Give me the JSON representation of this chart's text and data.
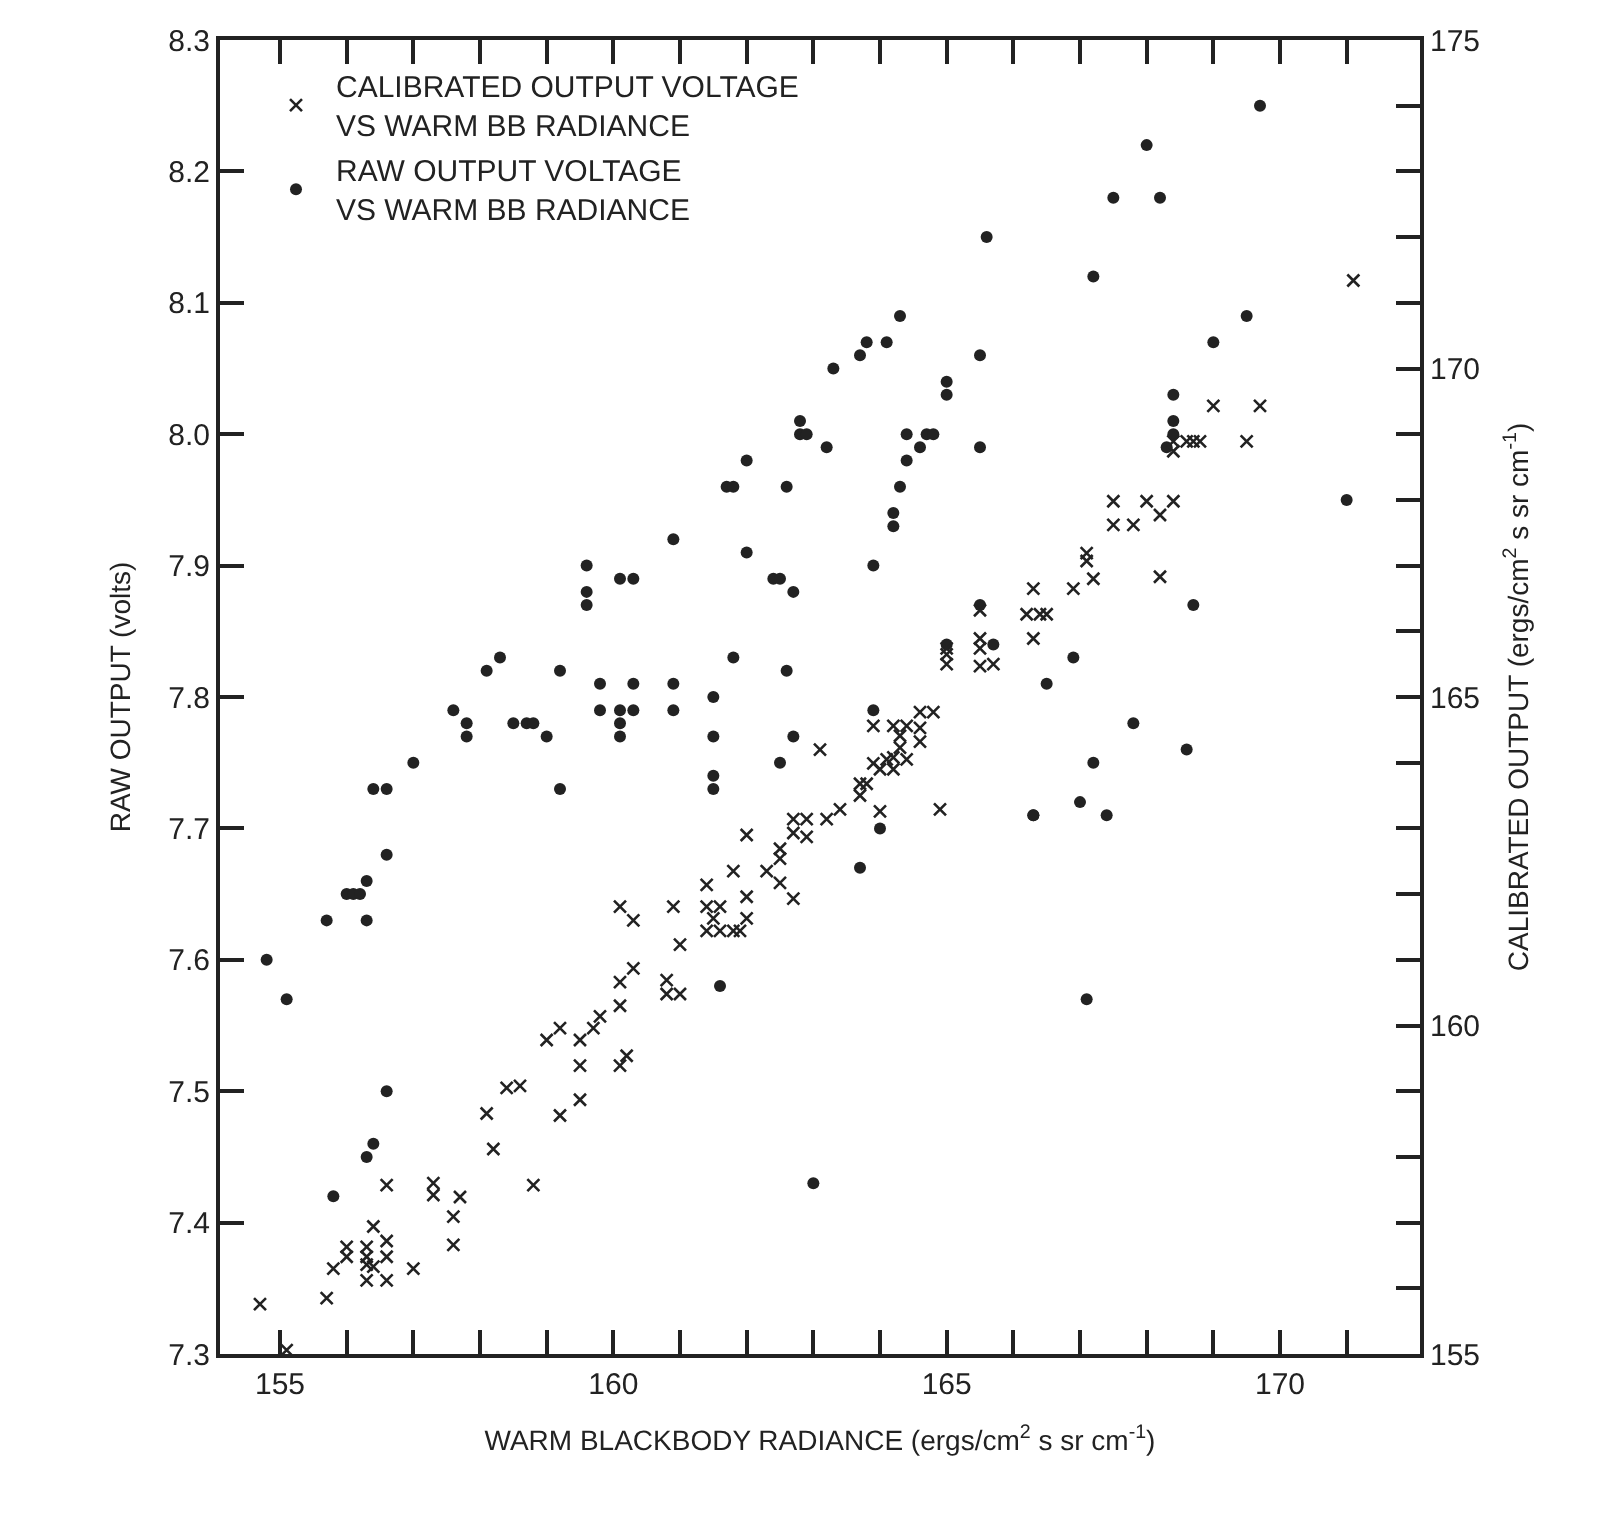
{
  "chart_data": {
    "type": "scatter",
    "xlabel": "WARM BLACKBODY RADIANCE (ergs/cm$^{2}$ s sr cm$^{-1}$)",
    "ylabel": "RAW OUTPUT (volts)",
    "y2label": "CALIBRATED OUTPUT (ergs/cm$^{2}$ s sr cm$^{-1}$)",
    "xlim": [
      154.1,
      172.1
    ],
    "xticks": [
      155,
      {
        "value": 156,
        "label": null
      },
      {
        "value": 157,
        "label": null
      },
      {
        "value": 158,
        "label": null
      },
      {
        "value": 159,
        "label": null
      },
      160,
      {
        "value": 161,
        "label": null
      },
      {
        "value": 162,
        "label": null
      },
      {
        "value": 163,
        "label": null
      },
      {
        "value": 164,
        "label": null
      },
      165,
      {
        "value": 166,
        "label": null
      },
      {
        "value": 167,
        "label": null
      },
      {
        "value": 168,
        "label": null
      },
      {
        "value": 169,
        "label": null
      },
      170,
      {
        "value": 171,
        "label": null
      }
    ],
    "ylim": [
      7.3,
      8.3
    ],
    "yticks": [
      7.3,
      7.4,
      7.5,
      7.6,
      7.7,
      7.8,
      7.9,
      {
        "value": 8.0,
        "label": "8.0"
      },
      8.1,
      8.2,
      8.3
    ],
    "y2lim": [
      155,
      175
    ],
    "y2ticks": [
      155,
      {
        "value": 156,
        "label": null
      },
      {
        "value": 157,
        "label": null
      },
      {
        "value": 158,
        "label": null
      },
      {
        "value": 159,
        "label": null
      },
      160,
      {
        "value": 161,
        "label": null
      },
      {
        "value": 162,
        "label": null
      },
      {
        "value": 163,
        "label": null
      },
      {
        "value": 164,
        "label": null
      },
      165,
      {
        "value": 166,
        "label": null
      },
      {
        "value": 167,
        "label": null
      },
      {
        "value": 168,
        "label": null
      },
      {
        "value": 169,
        "label": null
      },
      170,
      {
        "value": 171,
        "label": null
      },
      {
        "value": 172,
        "label": null
      },
      {
        "value": 173,
        "label": null
      },
      {
        "value": 174,
        "label": null
      },
      175
    ],
    "legend": "top left",
    "series": [
      {
        "name": "CALIBRATED OUTPUT VOLTAGE\nVS WARM BB RADIANCE",
        "color": "#222222",
        "marker": "cross",
        "axis": "y2",
        "x": [
          154.7,
          155.1,
          155.7,
          155.8,
          156.0,
          156.0,
          156.3,
          156.3,
          156.3,
          156.4,
          156.3,
          156.6,
          156.6,
          156.6,
          156.6,
          156.4,
          157.0,
          157.3,
          157.3,
          157.7,
          157.6,
          157.6,
          158.1,
          158.2,
          158.4,
          158.6,
          158.8,
          159.2,
          159.0,
          159.2,
          159.5,
          159.5,
          159.5,
          159.7,
          159.8,
          160.1,
          160.1,
          160.3,
          160.1,
          160.2,
          160.1,
          160.3,
          160.8,
          160.8,
          161.0,
          160.9,
          161.0,
          161.4,
          161.4,
          161.6,
          161.5,
          161.4,
          161.6,
          161.8,
          161.9,
          162.0,
          162.0,
          161.8,
          162.0,
          162.3,
          162.5,
          162.5,
          162.5,
          162.7,
          162.7,
          162.9,
          162.7,
          162.9,
          163.1,
          163.2,
          163.4,
          163.7,
          163.8,
          163.7,
          164.0,
          163.9,
          164.0,
          163.9,
          164.2,
          164.4,
          164.1,
          164.2,
          164.4,
          164.2,
          164.3,
          164.3,
          164.6,
          164.6,
          164.8,
          164.6,
          164.9,
          171.1,
          169.0,
          169.7,
          168.4,
          168.6,
          168.7,
          168.8,
          168.4,
          169.5,
          167.5,
          168.0,
          168.4,
          167.5,
          167.8,
          168.2,
          168.2,
          167.1,
          167.1,
          167.2,
          166.9,
          166.3,
          166.2,
          166.4,
          166.5,
          166.3,
          165.5,
          165.5,
          165.5,
          165.7,
          165.5,
          165.0,
          165.0,
          165.0
        ],
        "values": [
          155.76,
          155.06,
          155.85,
          156.3,
          156.63,
          156.48,
          156.63,
          156.48,
          156.36,
          156.33,
          156.12,
          156.72,
          156.48,
          156.12,
          157.57,
          156.94,
          156.3,
          157.6,
          157.42,
          157.39,
          157.09,
          156.66,
          158.66,
          158.12,
          159.05,
          159.08,
          157.57,
          158.63,
          159.78,
          159.96,
          159.78,
          159.39,
          158.87,
          159.96,
          160.14,
          160.66,
          160.3,
          160.87,
          159.39,
          159.54,
          161.81,
          161.6,
          160.69,
          160.48,
          160.48,
          161.81,
          161.23,
          162.14,
          161.81,
          161.81,
          161.63,
          161.44,
          161.44,
          161.44,
          161.44,
          161.63,
          161.96,
          162.35,
          162.9,
          162.35,
          162.69,
          162.54,
          162.17,
          161.93,
          163.14,
          163.14,
          162.93,
          162.87,
          164.2,
          163.14,
          163.29,
          163.68,
          163.68,
          163.5,
          163.26,
          163.99,
          163.9,
          164.56,
          164.56,
          164.56,
          164.05,
          164.08,
          164.05,
          163.9,
          164.41,
          164.23,
          164.53,
          164.77,
          164.77,
          164.32,
          163.29,
          171.34,
          169.43,
          169.43,
          168.89,
          168.89,
          168.89,
          168.89,
          168.74,
          168.89,
          167.98,
          167.98,
          167.98,
          167.62,
          167.62,
          167.77,
          166.83,
          167.19,
          167.07,
          166.8,
          166.65,
          166.65,
          166.26,
          166.26,
          166.26,
          165.89,
          166.32,
          165.89,
          165.74,
          165.5,
          165.47,
          165.74,
          165.65,
          165.5
        ]
      },
      {
        "name": "RAW OUTPUT VOLTAGE\nVS WARM BB RADIANCE",
        "color": "#222222",
        "marker": "circle",
        "x": [
          163.3,
          163.7,
          163.8,
          164.1,
          164.3,
          162.8,
          162.8,
          162.9,
          163.2,
          162.0,
          161.7,
          161.8,
          162.6,
          164.4,
          164.4,
          164.3,
          164.2,
          164.2,
          160.9,
          162.0,
          159.6,
          159.6,
          159.6,
          160.1,
          160.3,
          162.4,
          162.5,
          162.7,
          163.9,
          158.1,
          158.3,
          159.2,
          161.8,
          162.6,
          159.8,
          160.3,
          160.9,
          161.5,
          157.6,
          159.8,
          160.1,
          160.3,
          160.1,
          160.1,
          160.9,
          161.5,
          161.5,
          161.5,
          162.7,
          162.5,
          163.9,
          164.0,
          163.7,
          161.6,
          163.0,
          157.8,
          157.8,
          158.5,
          158.7,
          158.8,
          159.0,
          159.2,
          157.0,
          156.4,
          156.6,
          156.6,
          156.3,
          156.0,
          156.1,
          156.2,
          156.3,
          155.7,
          154.8,
          155.1,
          156.6,
          156.4,
          156.3,
          155.8,
          169.7,
          168.0,
          167.5,
          168.2,
          165.6,
          167.2,
          169.5,
          169.0,
          165.5,
          165.0,
          165.0,
          164.7,
          164.8,
          164.6,
          165.5,
          168.4,
          168.4,
          168.4,
          168.3,
          171.0,
          168.7,
          165.5,
          165.0,
          165.7,
          166.9,
          166.5,
          167.8,
          168.6,
          167.2,
          167.0,
          166.3,
          166.3,
          167.4,
          167.1
        ],
        "values": [
          8.05,
          8.06,
          8.07,
          8.07,
          8.09,
          8.01,
          8.0,
          8.0,
          7.99,
          7.98,
          7.96,
          7.96,
          7.96,
          8.0,
          7.98,
          7.96,
          7.94,
          7.93,
          7.92,
          7.91,
          7.9,
          7.88,
          7.87,
          7.89,
          7.89,
          7.89,
          7.89,
          7.88,
          7.9,
          7.82,
          7.83,
          7.82,
          7.83,
          7.82,
          7.81,
          7.81,
          7.81,
          7.8,
          7.79,
          7.79,
          7.79,
          7.79,
          7.78,
          7.77,
          7.79,
          7.77,
          7.74,
          7.73,
          7.77,
          7.75,
          7.79,
          7.7,
          7.67,
          7.58,
          7.43,
          7.78,
          7.77,
          7.78,
          7.78,
          7.78,
          7.77,
          7.73,
          7.75,
          7.73,
          7.73,
          7.68,
          7.66,
          7.65,
          7.65,
          7.65,
          7.63,
          7.63,
          7.6,
          7.57,
          7.5,
          7.46,
          7.45,
          7.42,
          8.25,
          8.22,
          8.18,
          8.18,
          8.15,
          8.12,
          8.09,
          8.07,
          8.06,
          8.04,
          8.03,
          8.0,
          8.0,
          7.99,
          7.99,
          8.03,
          8.01,
          8.0,
          7.99,
          7.95,
          7.87,
          7.87,
          7.84,
          7.84,
          7.83,
          7.81,
          7.78,
          7.76,
          7.75,
          7.72,
          7.71,
          7.71,
          7.71,
          7.57
        ]
      }
    ]
  }
}
